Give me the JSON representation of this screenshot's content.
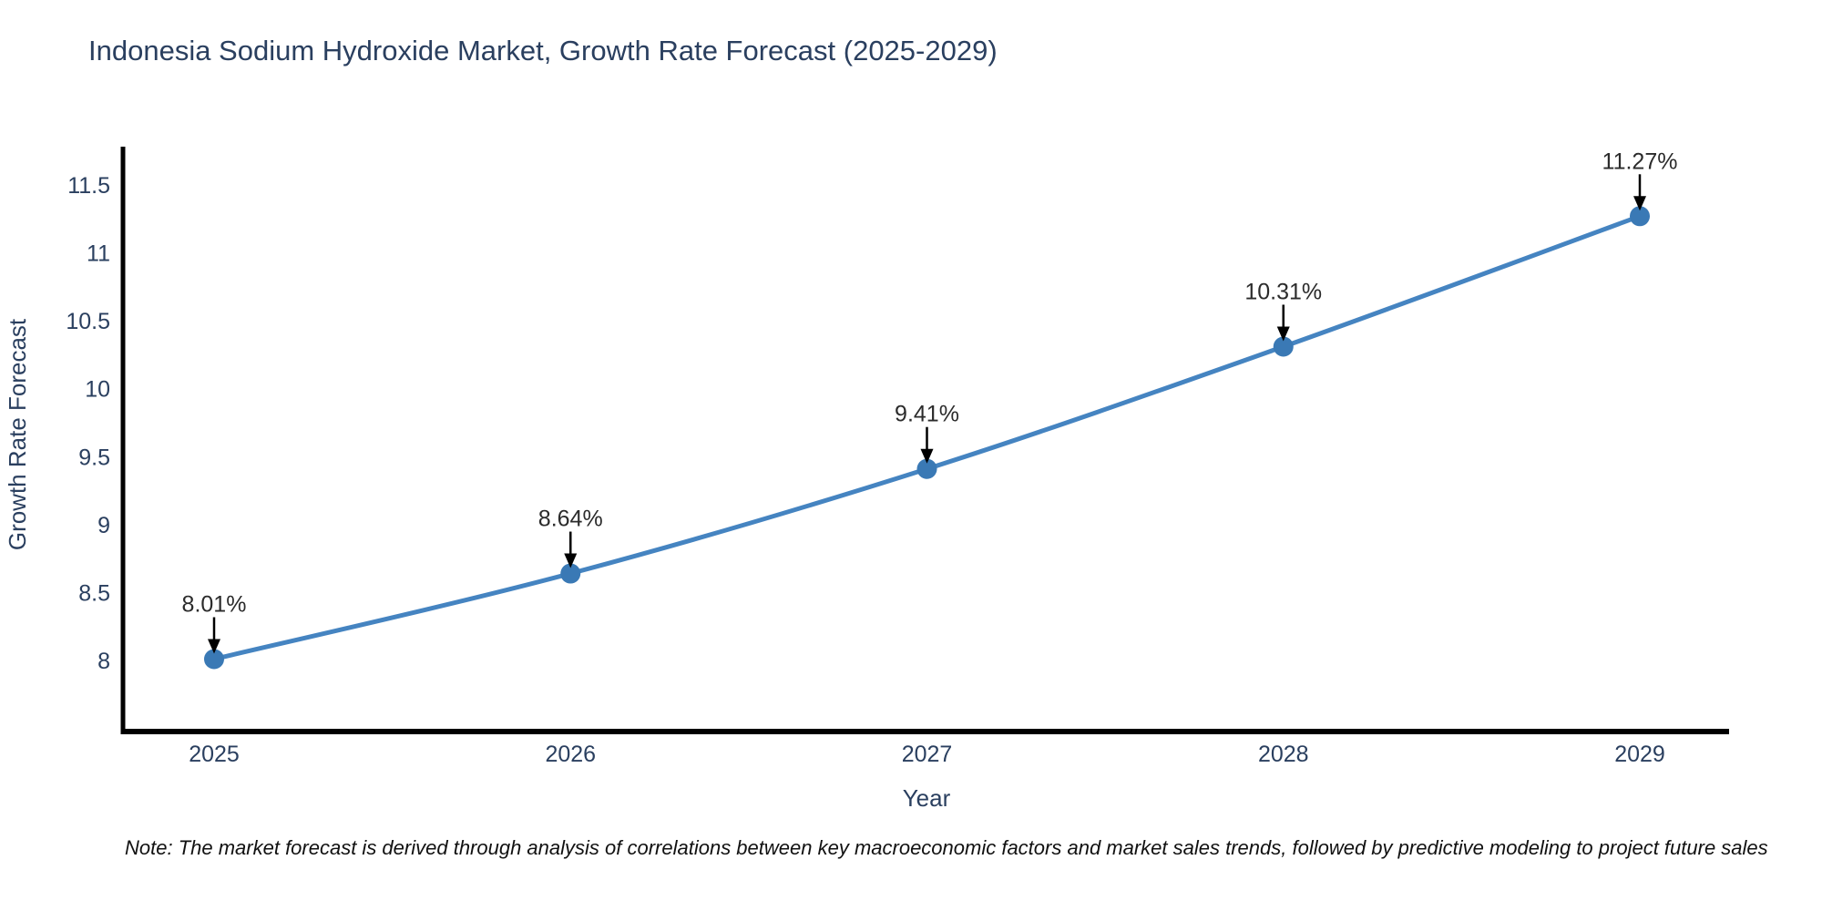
{
  "chart_data": {
    "type": "line",
    "title": "Indonesia Sodium Hydroxide Market, Growth Rate Forecast (2025-2029)",
    "xlabel": "Year",
    "ylabel": "Growth Rate Forecast",
    "categories": [
      "2025",
      "2026",
      "2027",
      "2028",
      "2029"
    ],
    "series": [
      {
        "name": "Growth Rate Forecast",
        "values": [
          8.01,
          8.64,
          9.41,
          10.31,
          11.27
        ]
      }
    ],
    "point_labels": [
      "8.01%",
      "8.64%",
      "9.41%",
      "10.31%",
      "11.27%"
    ],
    "y_ticks": [
      8,
      8.5,
      9,
      9.5,
      10,
      10.5,
      11,
      11.5
    ],
    "ylim": [
      7.45,
      11.78
    ],
    "grid": false,
    "legend": "none",
    "colors": {
      "line": "#4584c1",
      "marker": "#3a79b5",
      "axis": "#000000",
      "tick_text": "#2a3f5f",
      "title_text": "#2a3f5f",
      "annotation_text": "#2b2b2b",
      "arrow": "#000000",
      "background": "#ffffff"
    }
  },
  "note": "Note: The market forecast is derived through analysis of correlations between key macroeconomic factors and market sales trends, followed by predictive modeling to project future sales"
}
